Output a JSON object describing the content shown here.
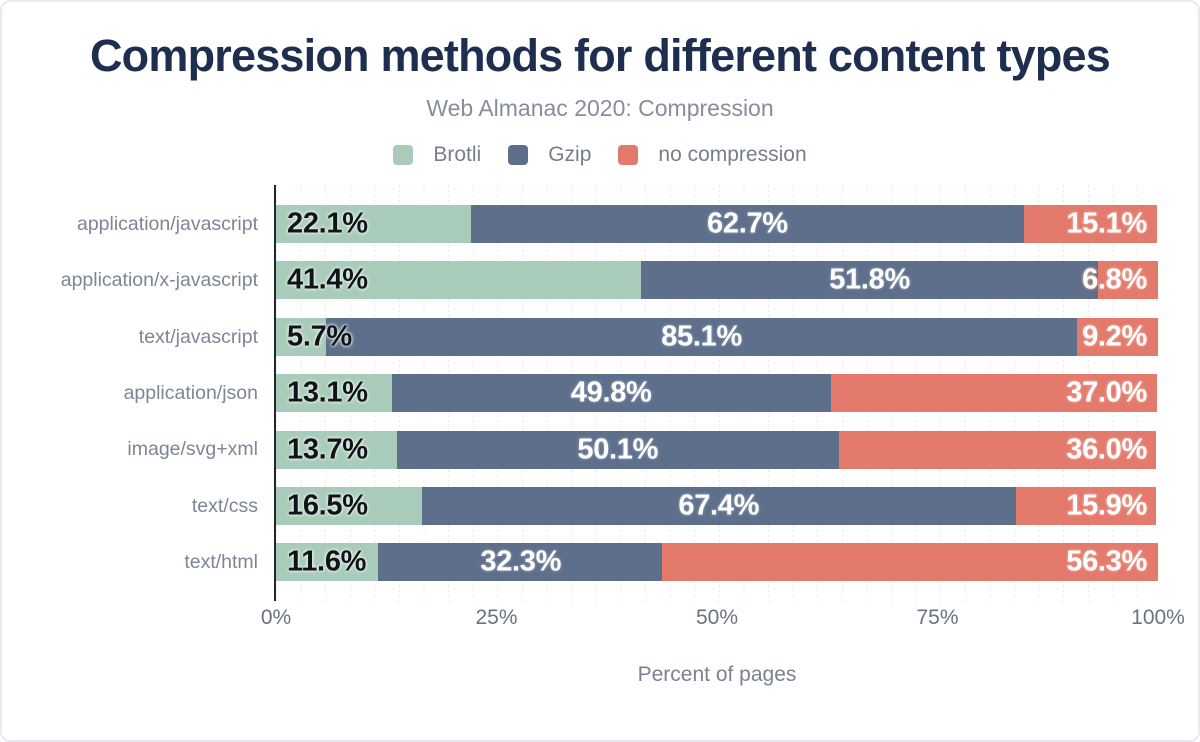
{
  "header": {
    "title": "Compression methods for different content types",
    "subtitle": "Web Almanac 2020: Compression"
  },
  "chart_data": {
    "type": "bar",
    "variant": "horizontal-stacked",
    "title": "Compression methods for different content types",
    "subtitle": "Web Almanac 2020: Compression",
    "xlabel": "Percent of pages",
    "xlim": [
      0,
      100
    ],
    "x_ticks": [
      "0%",
      "25%",
      "50%",
      "75%",
      "100%"
    ],
    "x_tick_positions": [
      0,
      25,
      50,
      75,
      100
    ],
    "grid": "minor-vertical-dotted",
    "legend_position": "top",
    "categories": [
      "application/javascript",
      "application/x-javascript",
      "text/javascript",
      "application/json",
      "image/svg+xml",
      "text/css",
      "text/html"
    ],
    "series": [
      {
        "name": "Brotli",
        "color": "#a9ccba",
        "label_anchor": "start",
        "values": [
          22.1,
          41.4,
          5.7,
          13.1,
          13.7,
          16.5,
          11.6
        ]
      },
      {
        "name": "Gzip",
        "color": "#5e6f8c",
        "label_anchor": "center",
        "values": [
          62.7,
          51.8,
          85.1,
          49.8,
          50.1,
          67.4,
          32.3
        ]
      },
      {
        "name": "no compression",
        "color": "#e47a6c",
        "label_anchor": "end",
        "values": [
          15.1,
          6.8,
          9.2,
          37.0,
          36.0,
          15.9,
          56.3
        ]
      }
    ],
    "value_label_format": "0.0%"
  },
  "colors": {
    "title": "#1e2e4f",
    "subtitle": "#868e9a",
    "category_label": "#7d8694",
    "tick_label": "#6a7280",
    "axis_line": "#23262c",
    "card_border": "#e7ebf0"
  }
}
